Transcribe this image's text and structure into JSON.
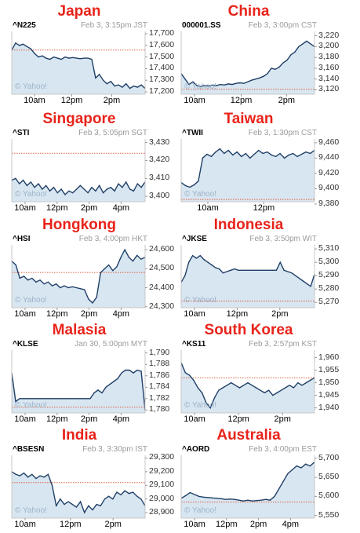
{
  "page": {
    "line_color": "#1f3f66",
    "fill_color": "#d8e6f1",
    "prev_close_color": "#e06040",
    "title_color": "#e8231a",
    "watermark": "© Yahoo!"
  },
  "chart_data": [
    {
      "type": "line",
      "title": "Japan",
      "symbol": "^N225",
      "stamp": "Feb 3, 3:15pm JST",
      "ylim": [
        17180,
        17720
      ],
      "y_ticks": [
        "17,700",
        "17,600",
        "17,500",
        "17,400",
        "17,300",
        "17,200"
      ],
      "y_tick_values": [
        17700,
        17600,
        17500,
        17400,
        17300,
        17200
      ],
      "x_ticks": [
        "10am",
        "12pm",
        "2pm"
      ],
      "x_tick_pos": [
        0.17,
        0.45,
        0.75
      ],
      "prev_close": 17560,
      "values": [
        17560,
        17620,
        17600,
        17610,
        17590,
        17570,
        17530,
        17500,
        17510,
        17490,
        17480,
        17500,
        17490,
        17480,
        17500,
        17490,
        17495,
        17490,
        17485,
        17490,
        17490,
        17480,
        17320,
        17350,
        17300,
        17270,
        17290,
        17250,
        17260,
        17240,
        17270,
        17230,
        17250,
        17240,
        17260,
        17230
      ]
    },
    {
      "type": "line",
      "title": "China",
      "symbol": "000001.SS",
      "stamp": "Feb 3, 3:00pm CST",
      "ylim": [
        3112,
        3228
      ],
      "y_ticks": [
        "3,220",
        "3,200",
        "3,180",
        "3,160",
        "3,140",
        "3,120"
      ],
      "y_tick_values": [
        3220,
        3200,
        3180,
        3160,
        3140,
        3120
      ],
      "x_ticks": [
        "10am",
        "12pm",
        "2pm"
      ],
      "x_tick_pos": [
        0.1,
        0.45,
        0.79
      ],
      "prev_close": 3121,
      "values": [
        3150,
        3140,
        3130,
        3135,
        3128,
        3126,
        3128,
        3127,
        3129,
        3128,
        3130,
        3129,
        3131,
        3130,
        3132,
        3133,
        3132,
        3135,
        3138,
        3140,
        3142,
        3145,
        3150,
        3160,
        3158,
        3162,
        3170,
        3175,
        3185,
        3190,
        3200,
        3205,
        3210,
        3205,
        3200
      ]
    },
    {
      "type": "line",
      "title": "Singapore",
      "symbol": "^STI",
      "stamp": "Feb 3, 5:05pm SGT",
      "ylim": [
        3397,
        3432
      ],
      "y_ticks": [
        "3,430",
        "3,420",
        "3,410",
        "3,400"
      ],
      "y_tick_values": [
        3430,
        3420,
        3410,
        3400
      ],
      "x_ticks": [
        "10am",
        "12pm",
        "2pm",
        "4pm"
      ],
      "x_tick_pos": [
        0.1,
        0.34,
        0.58,
        0.82
      ],
      "prev_close": 3424,
      "values": [
        3409,
        3410,
        3407,
        3409,
        3406,
        3408,
        3405,
        3407,
        3404,
        3406,
        3403,
        3405,
        3402,
        3404,
        3401,
        3403,
        3402,
        3404,
        3406,
        3404,
        3402,
        3405,
        3403,
        3406,
        3402,
        3404,
        3405,
        3403,
        3407,
        3405,
        3408,
        3404,
        3403,
        3407,
        3405,
        3408
      ]
    },
    {
      "type": "line",
      "title": "Taiwan",
      "symbol": "^TWII",
      "stamp": "Feb 3, 1:30pm CST",
      "ylim": [
        9383,
        9465
      ],
      "y_ticks": [
        "9,460",
        "9,440",
        "9,420",
        "9,400",
        "9,380"
      ],
      "y_tick_values": [
        9460,
        9440,
        9420,
        9400,
        9380
      ],
      "x_ticks": [
        "10am",
        "12pm"
      ],
      "x_tick_pos": [
        0.2,
        0.62
      ],
      "prev_close": 9386,
      "values": [
        9408,
        9404,
        9402,
        9405,
        9410,
        9440,
        9445,
        9442,
        9448,
        9452,
        9446,
        9450,
        9444,
        9448,
        9442,
        9446,
        9440,
        9445,
        9450,
        9446,
        9448,
        9444,
        9442,
        9446,
        9440,
        9444,
        9446,
        9442,
        9445,
        9448,
        9446,
        9450
      ]
    },
    {
      "type": "line",
      "title": "Hongkong",
      "symbol": "^HSI",
      "stamp": "Feb 3, 4:00pm HKT",
      "ylim": [
        24295,
        24625
      ],
      "y_ticks": [
        "24,600",
        "24,500",
        "24,400",
        "24,300"
      ],
      "y_tick_values": [
        24600,
        24500,
        24400,
        24300
      ],
      "x_ticks": [
        "10am",
        "12pm",
        "2pm",
        "4pm"
      ],
      "x_tick_pos": [
        0.1,
        0.34,
        0.58,
        0.82
      ],
      "prev_close": 24480,
      "values": [
        24540,
        24520,
        24450,
        24460,
        24440,
        24450,
        24430,
        24440,
        24420,
        24430,
        24410,
        24420,
        24400,
        24410,
        24400,
        24405,
        24400,
        24395,
        24390,
        24340,
        24320,
        24350,
        24480,
        24500,
        24520,
        24490,
        24510,
        24560,
        24600,
        24560,
        24540,
        24570,
        24550,
        24560
      ]
    },
    {
      "type": "line",
      "title": "Indonesia",
      "symbol": "^JKSE",
      "stamp": "Feb 3, 3:50pm WIT",
      "ylim": [
        5266,
        5313
      ],
      "y_ticks": [
        "5,310",
        "5,300",
        "5,290",
        "5,280",
        "5,270"
      ],
      "y_tick_values": [
        5310,
        5300,
        5290,
        5280,
        5270
      ],
      "x_ticks": [
        "10am",
        "12pm",
        "2pm"
      ],
      "x_tick_pos": [
        0.1,
        0.42,
        0.74
      ],
      "prev_close": 5271,
      "values": [
        5285,
        5290,
        5300,
        5305,
        5303,
        5305,
        5302,
        5300,
        5298,
        5296,
        5295,
        5292,
        5293,
        5294,
        5295,
        5294,
        5294,
        5294,
        5294,
        5294,
        5294,
        5294,
        5294,
        5294,
        5294,
        5294,
        5300,
        5294,
        5293,
        5292,
        5290,
        5288,
        5286,
        5284,
        5282,
        5291
      ]
    },
    {
      "type": "line",
      "title": "Malasia",
      "symbol": "^KLSE",
      "stamp": "Jan 30, 5:00pm MYT",
      "ylim": [
        1779.5,
        1790.5
      ],
      "y_ticks": [
        "1,790",
        "1,788",
        "1,786",
        "1,784",
        "1,782",
        "1,780"
      ],
      "y_tick_values": [
        1790,
        1788,
        1786,
        1784,
        1782,
        1780
      ],
      "x_ticks": [
        "10am",
        "12pm",
        "2pm",
        "4pm"
      ],
      "x_tick_pos": [
        0.1,
        0.34,
        0.58,
        0.82
      ],
      "prev_close": 1780.5,
      "values": [
        1786.5,
        1781.5,
        1782,
        1782,
        1782,
        1782,
        1782,
        1782,
        1782,
        1782,
        1782,
        1782,
        1782,
        1782,
        1782,
        1782,
        1782,
        1782,
        1782,
        1782,
        1782,
        1783,
        1783.5,
        1783,
        1784,
        1784.5,
        1785,
        1785.5,
        1786.5,
        1787,
        1787,
        1786.5,
        1787,
        1786.8,
        1780
      ]
    },
    {
      "type": "line",
      "title": "South Korea",
      "symbol": "^KS11",
      "stamp": "Feb 3, 2:57pm KST",
      "ylim": [
        1938,
        1963
      ],
      "y_ticks": [
        "1,960",
        "1,955",
        "1,950",
        "1,945",
        "1,940"
      ],
      "y_tick_values": [
        1960,
        1955,
        1950,
        1945,
        1940
      ],
      "x_ticks": [
        "10am",
        "12pm",
        "2pm"
      ],
      "x_tick_pos": [
        0.1,
        0.43,
        0.76
      ],
      "prev_close": 1952,
      "values": [
        1958,
        1954,
        1953,
        1951,
        1948,
        1946,
        1942,
        1940,
        1944,
        1947,
        1948,
        1949,
        1950,
        1949,
        1948,
        1949,
        1950,
        1949,
        1948,
        1947,
        1946,
        1947,
        1945,
        1946,
        1947,
        1948,
        1949,
        1948,
        1950,
        1949,
        1950,
        1951,
        1952
      ]
    },
    {
      "type": "line",
      "title": "India",
      "symbol": "^BSESN",
      "stamp": "Feb 3, 3:30pm IST",
      "ylim": [
        28860,
        29320
      ],
      "y_ticks": [
        "29,300",
        "29,200",
        "29,100",
        "29,000",
        "28,900"
      ],
      "y_tick_values": [
        29300,
        29200,
        29100,
        29000,
        28900
      ],
      "x_ticks": [
        "10am",
        "12pm",
        "2pm"
      ],
      "x_tick_pos": [
        0.1,
        0.44,
        0.76
      ],
      "prev_close": 29120,
      "values": [
        29200,
        29180,
        29170,
        29190,
        29160,
        29180,
        29150,
        29170,
        29160,
        29180,
        29100,
        28950,
        29000,
        28960,
        28980,
        28960,
        28940,
        28980,
        28900,
        28950,
        28920,
        28960,
        28950,
        29000,
        29020,
        29000,
        29050,
        29030,
        29060,
        29040,
        29050,
        29020,
        29000,
        28950
      ]
    },
    {
      "type": "line",
      "title": "Australia",
      "symbol": "^AORD",
      "stamp": "Feb 3, 4:00pm EST",
      "ylim": [
        5543,
        5708
      ],
      "y_ticks": [
        "5,700",
        "5,650",
        "5,600",
        "5,550"
      ],
      "y_tick_values": [
        5700,
        5650,
        5600,
        5550
      ],
      "x_ticks": [
        "10am",
        "12pm",
        "2pm",
        "4pm"
      ],
      "x_tick_pos": [
        0.1,
        0.34,
        0.58,
        0.82
      ],
      "prev_close": 5585,
      "values": [
        5595,
        5602,
        5610,
        5605,
        5600,
        5598,
        5597,
        5596,
        5595,
        5594,
        5592,
        5593,
        5592,
        5590,
        5588,
        5590,
        5588,
        5589,
        5590,
        5592,
        5590,
        5600,
        5620,
        5640,
        5660,
        5670,
        5680,
        5675,
        5685,
        5680,
        5690
      ]
    }
  ]
}
